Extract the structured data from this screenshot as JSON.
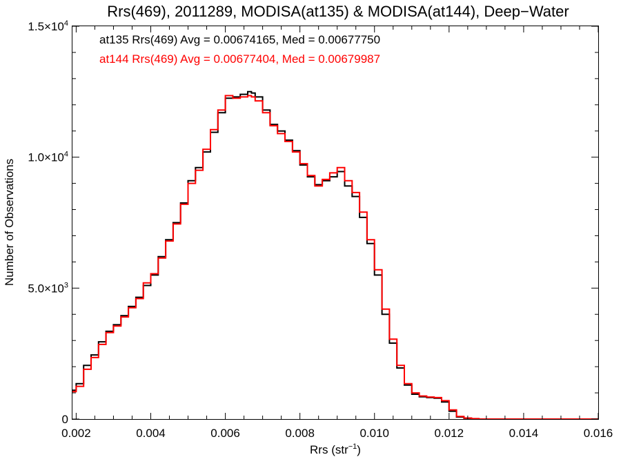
{
  "chart_data": {
    "type": "line",
    "title": "Rrs(469), 2011289, MODISA(at135) & MODISA(at144), Deep−Water",
    "xlabel": "Rrs (str",
    "xlabel_sup": "−1",
    "xlabel_end": ")",
    "ylabel": "Number of Observations",
    "xlim": [
      0.0019,
      0.016
    ],
    "ylim": [
      0,
      15000
    ],
    "x_ticks": [
      0.002,
      0.004,
      0.006,
      0.008,
      0.01,
      0.012,
      0.014,
      0.016
    ],
    "x_tick_labels": [
      "0.002",
      "0.004",
      "0.006",
      "0.008",
      "0.010",
      "0.012",
      "0.014",
      "0.016"
    ],
    "y_ticks": [
      {
        "value": 0,
        "mantissa": "0",
        "times": "",
        "base": "",
        "exp": ""
      },
      {
        "value": 5000,
        "mantissa": "5.0",
        "times": "×",
        "base": "10",
        "exp": "3"
      },
      {
        "value": 10000,
        "mantissa": "1.0",
        "times": "×",
        "base": "10",
        "exp": "4"
      },
      {
        "value": 15000,
        "mantissa": "1.5",
        "times": "×",
        "base": "10",
        "exp": "4"
      }
    ],
    "grid": false,
    "series": [
      {
        "name": "at135",
        "color": "#000000",
        "annotation": "at135 Rrs(469) Avg = 0.00674165, Med = 0.00677750",
        "step": "histogram",
        "x": [
          0.0019,
          0.002,
          0.0022,
          0.0024,
          0.0026,
          0.0028,
          0.003,
          0.0032,
          0.0034,
          0.0036,
          0.0038,
          0.004,
          0.0042,
          0.0044,
          0.0046,
          0.0048,
          0.005,
          0.0052,
          0.0054,
          0.0056,
          0.0058,
          0.006,
          0.0062,
          0.0064,
          0.0066,
          0.0067,
          0.0068,
          0.007,
          0.0072,
          0.0074,
          0.0076,
          0.0078,
          0.008,
          0.0082,
          0.0084,
          0.0086,
          0.0088,
          0.009,
          0.0092,
          0.0094,
          0.0096,
          0.0098,
          0.01,
          0.0102,
          0.0104,
          0.0106,
          0.0108,
          0.011,
          0.0112,
          0.0114,
          0.0116,
          0.0118,
          0.012,
          0.0122,
          0.0124,
          0.0126,
          0.0128,
          0.013,
          0.0135,
          0.014,
          0.015,
          0.016
        ],
        "y": [
          1100,
          1350,
          2050,
          2450,
          2950,
          3350,
          3600,
          3950,
          4300,
          4650,
          5100,
          5500,
          6200,
          6850,
          7500,
          8250,
          9100,
          9600,
          10200,
          10950,
          11700,
          12250,
          12300,
          12400,
          12500,
          12450,
          12300,
          11800,
          11250,
          11000,
          10650,
          10250,
          9700,
          9250,
          8950,
          9100,
          9250,
          9450,
          8900,
          8500,
          7700,
          6700,
          5500,
          4000,
          2900,
          1950,
          1300,
          950,
          850,
          820,
          800,
          650,
          300,
          80,
          30,
          10,
          0,
          0,
          0,
          0,
          0,
          0
        ]
      },
      {
        "name": "at144",
        "color": "#ff0000",
        "annotation": "at144 Rrs(469) Avg = 0.00677404, Med = 0.00679987",
        "step": "histogram",
        "x": [
          0.0019,
          0.002,
          0.0022,
          0.0024,
          0.0026,
          0.0028,
          0.003,
          0.0032,
          0.0034,
          0.0036,
          0.0038,
          0.004,
          0.0042,
          0.0044,
          0.0046,
          0.0048,
          0.005,
          0.0052,
          0.0054,
          0.0056,
          0.0058,
          0.006,
          0.0062,
          0.0064,
          0.0066,
          0.0067,
          0.0068,
          0.007,
          0.0072,
          0.0074,
          0.0076,
          0.0078,
          0.008,
          0.0082,
          0.0084,
          0.0086,
          0.0088,
          0.009,
          0.0092,
          0.0094,
          0.0096,
          0.0098,
          0.01,
          0.0102,
          0.0104,
          0.0106,
          0.0108,
          0.011,
          0.0112,
          0.0114,
          0.0116,
          0.0118,
          0.012,
          0.0122,
          0.0124,
          0.0126,
          0.0128,
          0.013,
          0.0135,
          0.014,
          0.015,
          0.016
        ],
        "y": [
          1050,
          1250,
          1900,
          2350,
          2850,
          3300,
          3550,
          3900,
          4250,
          4600,
          5200,
          5550,
          6150,
          6800,
          7450,
          8200,
          9000,
          9500,
          10300,
          11050,
          11800,
          12350,
          12250,
          12300,
          12350,
          12300,
          12150,
          11700,
          11200,
          10900,
          10600,
          10200,
          9750,
          9300,
          8900,
          9150,
          9400,
          9600,
          9100,
          8650,
          7900,
          6850,
          5700,
          4200,
          3050,
          2050,
          1350,
          1000,
          880,
          840,
          820,
          700,
          350,
          100,
          40,
          15,
          0,
          0,
          0,
          0,
          0,
          0
        ]
      }
    ]
  }
}
